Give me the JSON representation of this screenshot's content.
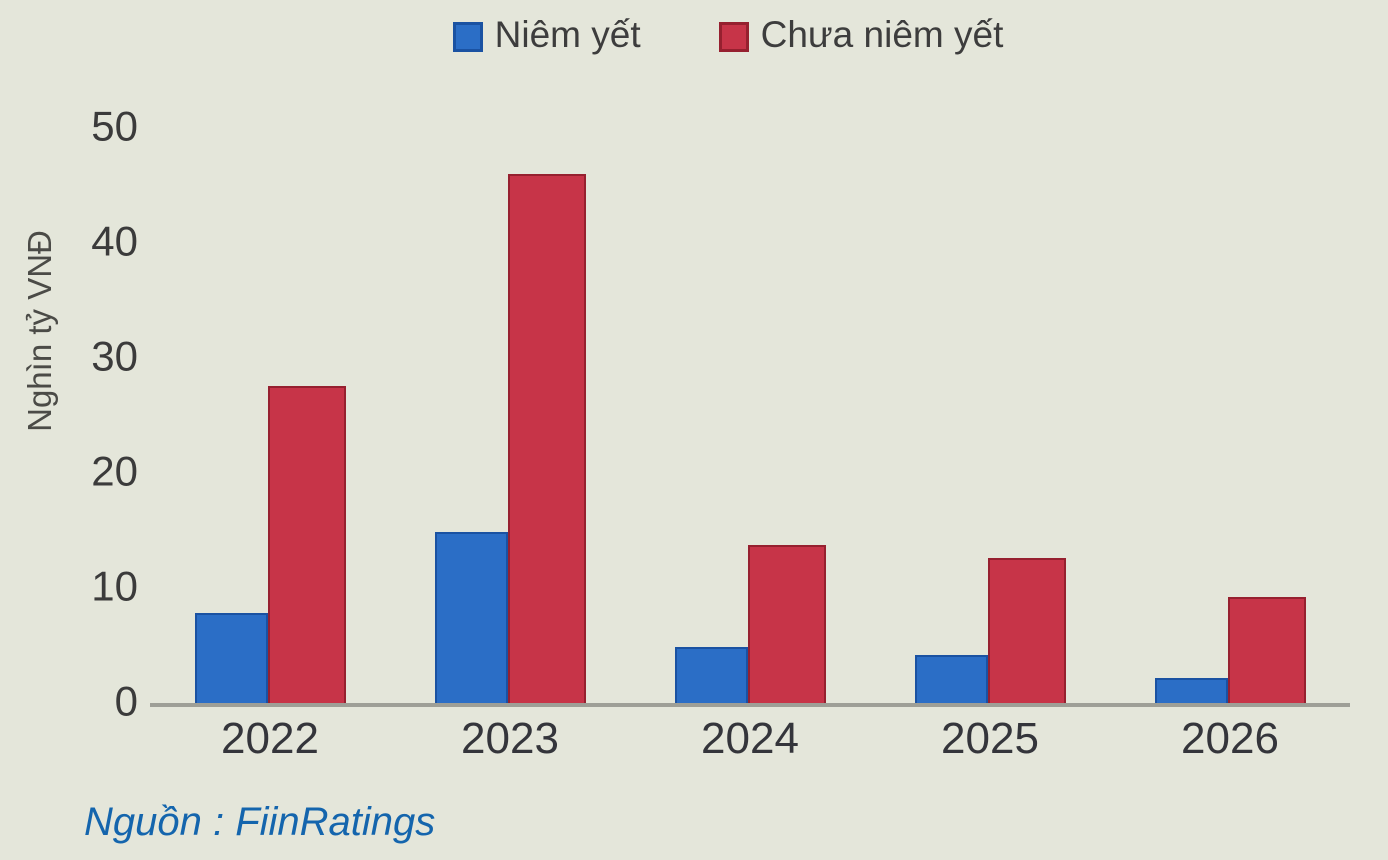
{
  "y_axis": {
    "title": "Nghìn tỷ VNĐ"
  },
  "source_note": "Nguồn : FiinRatings",
  "colors": {
    "background": "#e4e6da",
    "axis_line": "#9e9f97",
    "tick_text": "#3b3b3b",
    "x_label_text": "#34353b",
    "legend_text": "#3d3d3d",
    "source_text": "#1465ad"
  },
  "chart_data": {
    "type": "bar",
    "title": "",
    "categories": [
      "2022",
      "2023",
      "2024",
      "2025",
      "2026"
    ],
    "series": [
      {
        "id": "niem-yet",
        "name": "Niêm yết",
        "color": "#2b6ec6",
        "border": "#1a52a2",
        "values": [
          7.8,
          14.9,
          4.9,
          4.2,
          2.2
        ]
      },
      {
        "id": "chua-niem-yet",
        "name": "Chưa niêm yết",
        "color": "#c73448",
        "border": "#96202f",
        "values": [
          27.6,
          46.0,
          13.7,
          12.6,
          9.2
        ]
      }
    ],
    "xlabel": "",
    "ylabel": "Nghìn tỷ VNĐ",
    "ylim": [
      0,
      50
    ],
    "yticks": [
      50,
      40,
      30,
      20,
      10,
      0
    ],
    "legend_position": "top",
    "grid": false
  }
}
